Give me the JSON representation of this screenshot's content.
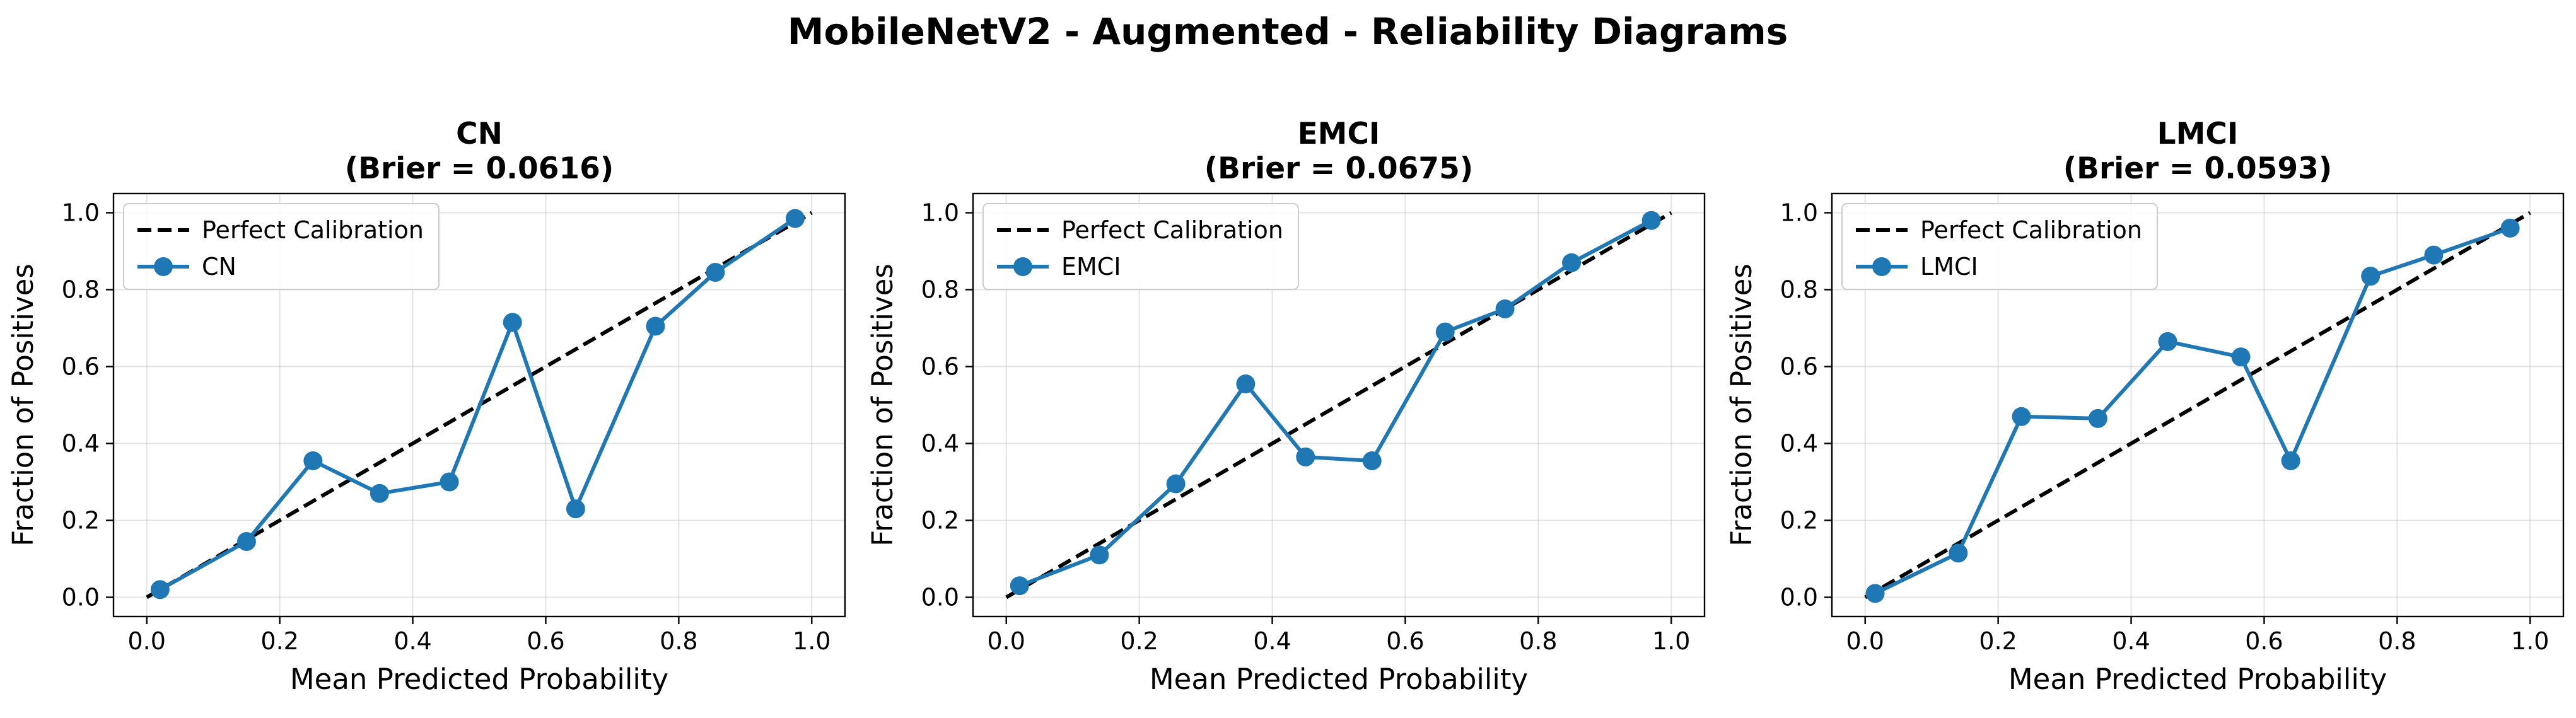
{
  "figure": {
    "title": "MobileNetV2 - Augmented - Reliability Diagrams"
  },
  "colors": {
    "series": "#1f77b4",
    "perfect": "#000000"
  },
  "chart_data": [
    {
      "type": "line",
      "title_line1": "CN",
      "title_line2": "(Brier = 0.0616)",
      "xlabel": "Mean Predicted Probability",
      "ylabel": "Fraction of Positives",
      "xlim": [
        -0.05,
        1.05
      ],
      "ylim": [
        -0.05,
        1.05
      ],
      "xticks": [
        0.0,
        0.2,
        0.4,
        0.6,
        0.8,
        1.0
      ],
      "yticks": [
        0.0,
        0.2,
        0.4,
        0.6,
        0.8,
        1.0
      ],
      "grid": true,
      "legend_position": "upper-left",
      "perfect_label": "Perfect Calibration",
      "series": [
        {
          "name": "CN",
          "x": [
            0.02,
            0.15,
            0.25,
            0.35,
            0.455,
            0.55,
            0.645,
            0.765,
            0.855,
            0.975
          ],
          "y": [
            0.02,
            0.145,
            0.355,
            0.27,
            0.3,
            0.715,
            0.23,
            0.705,
            0.845,
            0.985
          ]
        }
      ]
    },
    {
      "type": "line",
      "title_line1": "EMCI",
      "title_line2": "(Brier = 0.0675)",
      "xlabel": "Mean Predicted Probability",
      "ylabel": "Fraction of Positives",
      "xlim": [
        -0.05,
        1.05
      ],
      "ylim": [
        -0.05,
        1.05
      ],
      "xticks": [
        0.0,
        0.2,
        0.4,
        0.6,
        0.8,
        1.0
      ],
      "yticks": [
        0.0,
        0.2,
        0.4,
        0.6,
        0.8,
        1.0
      ],
      "grid": true,
      "legend_position": "upper-left",
      "perfect_label": "Perfect Calibration",
      "series": [
        {
          "name": "EMCI",
          "x": [
            0.02,
            0.14,
            0.255,
            0.36,
            0.45,
            0.55,
            0.66,
            0.75,
            0.85,
            0.97
          ],
          "y": [
            0.03,
            0.11,
            0.295,
            0.555,
            0.365,
            0.355,
            0.69,
            0.75,
            0.87,
            0.98
          ]
        }
      ]
    },
    {
      "type": "line",
      "title_line1": "LMCI",
      "title_line2": "(Brier = 0.0593)",
      "xlabel": "Mean Predicted Probability",
      "ylabel": "Fraction of Positives",
      "xlim": [
        -0.05,
        1.05
      ],
      "ylim": [
        -0.05,
        1.05
      ],
      "xticks": [
        0.0,
        0.2,
        0.4,
        0.6,
        0.8,
        1.0
      ],
      "yticks": [
        0.0,
        0.2,
        0.4,
        0.6,
        0.8,
        1.0
      ],
      "grid": true,
      "legend_position": "upper-left",
      "perfect_label": "Perfect Calibration",
      "series": [
        {
          "name": "LMCI",
          "x": [
            0.015,
            0.14,
            0.235,
            0.35,
            0.455,
            0.565,
            0.64,
            0.76,
            0.855,
            0.97
          ],
          "y": [
            0.01,
            0.115,
            0.47,
            0.465,
            0.665,
            0.625,
            0.355,
            0.835,
            0.89,
            0.96
          ]
        }
      ]
    }
  ]
}
